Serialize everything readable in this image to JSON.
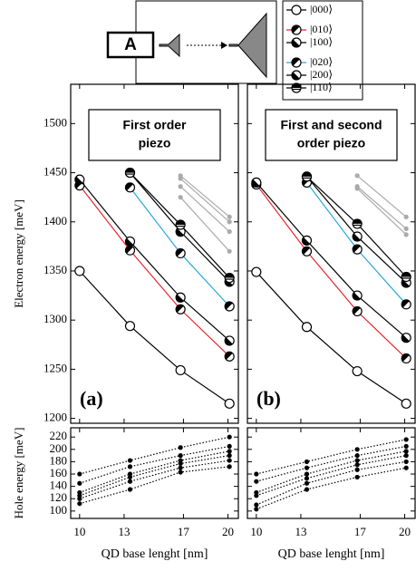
{
  "inset": {
    "label": "A"
  },
  "chart_data": [
    {
      "type": "line",
      "panel_label": "(a)",
      "title": [
        "First order",
        "piezo"
      ],
      "ylabel": "Electron energy [meV]",
      "x": [
        10,
        13.4,
        16.8,
        20.1
      ],
      "xlim": [
        9.4,
        20.7
      ],
      "xticks": [
        10,
        13,
        17,
        20
      ],
      "show_xtick_labels": false,
      "ylim": [
        1195,
        1540
      ],
      "yticks": [
        1200,
        1250,
        1300,
        1350,
        1400,
        1450,
        1500
      ],
      "show_ytick_labels": true,
      "line_style": "solid",
      "series": [
        {
          "name": "|000⟩",
          "color": "#000000",
          "marker": "open",
          "values": [
            1350,
            1294,
            1249,
            1215
          ]
        },
        {
          "name": "|010⟩",
          "color": "#e8262a",
          "marker": "half",
          "values": [
            1437,
            1371,
            1311,
            1263
          ]
        },
        {
          "name": "|100⟩",
          "color": "#000000",
          "marker": "half",
          "values": [
            1443,
            1380,
            1323,
            1279
          ]
        },
        {
          "name": "|020⟩",
          "color": "#29a9d8",
          "marker": "half",
          "values": [
            null,
            1435,
            1368,
            1314
          ]
        },
        {
          "name": "|200⟩",
          "color": "#000000",
          "marker": "half",
          "values": [
            null,
            1450,
            1390,
            1339
          ]
        },
        {
          "name": "|110⟩",
          "color": "#000000",
          "marker": "cross",
          "values": [
            null,
            1450,
            1397,
            1343
          ]
        },
        {
          "color": "#aaaaaa",
          "marker": "dot",
          "values": [
            null,
            null,
            1447,
            1405
          ]
        },
        {
          "color": "#aaaaaa",
          "marker": "dot",
          "values": [
            null,
            null,
            1444,
            1400
          ]
        },
        {
          "color": "#aaaaaa",
          "marker": "dot",
          "values": [
            null,
            null,
            1436,
            1390
          ]
        },
        {
          "color": "#aaaaaa",
          "marker": "dot",
          "values": [
            null,
            null,
            1425,
            1370
          ]
        }
      ]
    },
    {
      "type": "line",
      "panel_label": "(b)",
      "title": [
        "First and second",
        "order piezo"
      ],
      "x": [
        10,
        13.4,
        16.8,
        20.1
      ],
      "xlim": [
        9.4,
        20.7
      ],
      "xticks": [
        10,
        13,
        17,
        20
      ],
      "show_xtick_labels": false,
      "ylim": [
        1195,
        1540
      ],
      "yticks": [
        1200,
        1250,
        1300,
        1350,
        1400,
        1450,
        1500
      ],
      "show_ytick_labels": false,
      "line_style": "solid",
      "series": [
        {
          "color": "#000000",
          "marker": "open",
          "values": [
            1349,
            1293,
            1248,
            1215
          ]
        },
        {
          "color": "#e8262a",
          "marker": "half",
          "values": [
            1438,
            1370,
            1309,
            1261
          ]
        },
        {
          "color": "#000000",
          "marker": "half",
          "values": [
            1440,
            1381,
            1325,
            1282
          ]
        },
        {
          "color": "#29a9d8",
          "marker": "half",
          "values": [
            null,
            1440,
            1372,
            1316
          ]
        },
        {
          "color": "#000000",
          "marker": "half",
          "values": [
            null,
            1446,
            1385,
            1338
          ]
        },
        {
          "color": "#000000",
          "marker": "cross",
          "values": [
            null,
            1446,
            1398,
            1344
          ]
        },
        {
          "color": "#aaaaaa",
          "marker": "dot",
          "values": [
            null,
            null,
            1447,
            1405
          ]
        },
        {
          "color": "#aaaaaa",
          "marker": "dot",
          "values": [
            null,
            null,
            1436,
            1393
          ]
        },
        {
          "color": "#aaaaaa",
          "marker": "dot",
          "values": [
            null,
            null,
            1434,
            1387
          ]
        }
      ]
    },
    {
      "type": "line",
      "ylabel": "Hole energy [meV]",
      "xlabel": "QD base lenght [nm]",
      "x": [
        10,
        13.4,
        16.8,
        20.1
      ],
      "xlim": [
        9.4,
        20.7
      ],
      "xticks": [
        10,
        13,
        17,
        20
      ],
      "show_xtick_labels": true,
      "ylim": [
        88,
        235
      ],
      "yticks": [
        100,
        120,
        140,
        160,
        180,
        200,
        220
      ],
      "show_ytick_labels": true,
      "line_style": "dotted",
      "series": [
        {
          "color": "#000000",
          "marker": "dot",
          "values": [
            160,
            182,
            203,
            220
          ]
        },
        {
          "color": "#000000",
          "marker": "dot",
          "values": [
            145,
            172,
            190,
            205
          ]
        },
        {
          "color": "#000000",
          "marker": "dot",
          "values": [
            130,
            160,
            182,
            197
          ]
        },
        {
          "color": "#000000",
          "marker": "dot",
          "values": [
            125,
            155,
            177,
            190
          ]
        },
        {
          "color": "#000000",
          "marker": "dot",
          "values": [
            120,
            148,
            170,
            182
          ]
        },
        {
          "color": "#000000",
          "marker": "dot",
          "values": [
            112,
            135,
            163,
            172
          ]
        }
      ]
    },
    {
      "type": "line",
      "xlabel": "QD base lenght [nm]",
      "x": [
        10,
        13.4,
        16.8,
        20.1
      ],
      "xlim": [
        9.4,
        20.7
      ],
      "xticks": [
        10,
        13,
        17,
        20
      ],
      "show_xtick_labels": true,
      "ylim": [
        88,
        235
      ],
      "yticks": [
        100,
        120,
        140,
        160,
        180,
        200,
        220
      ],
      "show_ytick_labels": false,
      "line_style": "dotted",
      "series": [
        {
          "color": "#000000",
          "marker": "dot",
          "values": [
            160,
            180,
            200,
            216
          ]
        },
        {
          "color": "#000000",
          "marker": "dot",
          "values": [
            148,
            170,
            190,
            205
          ]
        },
        {
          "color": "#000000",
          "marker": "dot",
          "values": [
            130,
            160,
            182,
            197
          ]
        },
        {
          "color": "#000000",
          "marker": "dot",
          "values": [
            125,
            153,
            175,
            190
          ]
        },
        {
          "color": "#000000",
          "marker": "dot",
          "values": [
            110,
            145,
            167,
            180
          ]
        },
        {
          "color": "#000000",
          "marker": "dot",
          "values": [
            103,
            135,
            155,
            170
          ]
        }
      ]
    }
  ]
}
